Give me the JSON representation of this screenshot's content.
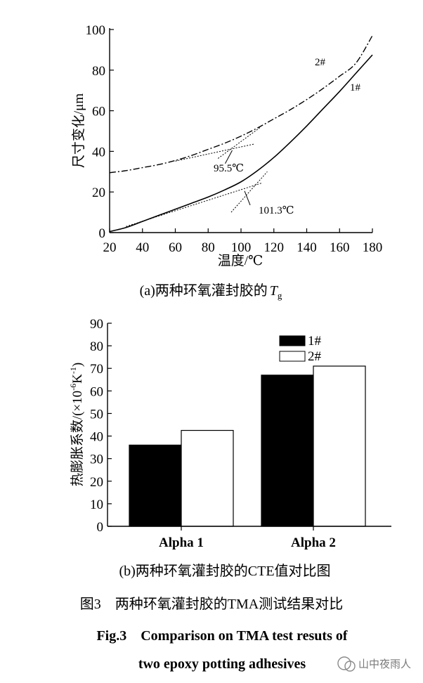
{
  "chart_data": [
    {
      "type": "line",
      "xlabel": "温度/℃",
      "ylabel": "尺寸变化/μm",
      "xlim": [
        20,
        180
      ],
      "ylim": [
        0,
        100
      ],
      "xticks": [
        "20",
        "40",
        "60",
        "80",
        "100",
        "120",
        "140",
        "160",
        "180"
      ],
      "yticks": [
        "0",
        "20",
        "40",
        "60",
        "80",
        "100"
      ],
      "series": [
        {
          "name": "1#",
          "style": "solid",
          "x": [
            20,
            30,
            40,
            50,
            60,
            70,
            80,
            90,
            100,
            110,
            120,
            130,
            140,
            150,
            160,
            170,
            180
          ],
          "y": [
            0.5,
            2.5,
            5.5,
            8.5,
            11.5,
            14.5,
            17.5,
            21,
            25,
            30.5,
            37,
            44.5,
            52.5,
            61,
            69.5,
            78.5,
            87.5
          ]
        },
        {
          "name": "2#",
          "style": "dash-dot",
          "x": [
            20,
            30,
            40,
            50,
            60,
            70,
            80,
            90,
            100,
            110,
            120,
            130,
            140,
            150,
            160,
            170,
            180
          ],
          "y": [
            29.5,
            30.5,
            32,
            33.5,
            35.5,
            38,
            41,
            44,
            47.5,
            51.5,
            56,
            60.5,
            65.5,
            71,
            77,
            83.5,
            97
          ]
        }
      ],
      "annotations": [
        {
          "text": "95.5℃",
          "x": 95.5
        },
        {
          "text": "101.3℃",
          "x": 101.3
        }
      ],
      "caption": "(a)两种环氧灌封胶的",
      "caption_symbol": "T",
      "caption_sub": "g"
    },
    {
      "type": "bar",
      "ylabel": "热膨胀系数/(×10",
      "ylabel_exp": "-6",
      "ylabel_unit": "K",
      "ylabel_unit_exp": "-1",
      "ylabel_close": ")",
      "ylim": [
        0,
        90
      ],
      "yticks": [
        "0",
        "10",
        "20",
        "30",
        "40",
        "50",
        "60",
        "70",
        "80",
        "90"
      ],
      "categories": [
        "Alpha 1",
        "Alpha 2"
      ],
      "series": [
        {
          "name": "1#",
          "color": "#000000",
          "values": [
            36,
            67
          ]
        },
        {
          "name": "2#",
          "color": "#ffffff",
          "values": [
            42.5,
            71
          ]
        }
      ],
      "legend_position": "top-right",
      "caption": "(b)两种环氧灌封胶的CTE值对比图"
    }
  ],
  "figure_caption_cn": "图3　两种环氧灌封胶的TMA测试结果对比",
  "figure_caption_en_line1": "Fig.3　Comparison on TMA test resuts of",
  "figure_caption_en_line2": "two epoxy potting adhesives",
  "watermark": "山中夜雨人"
}
